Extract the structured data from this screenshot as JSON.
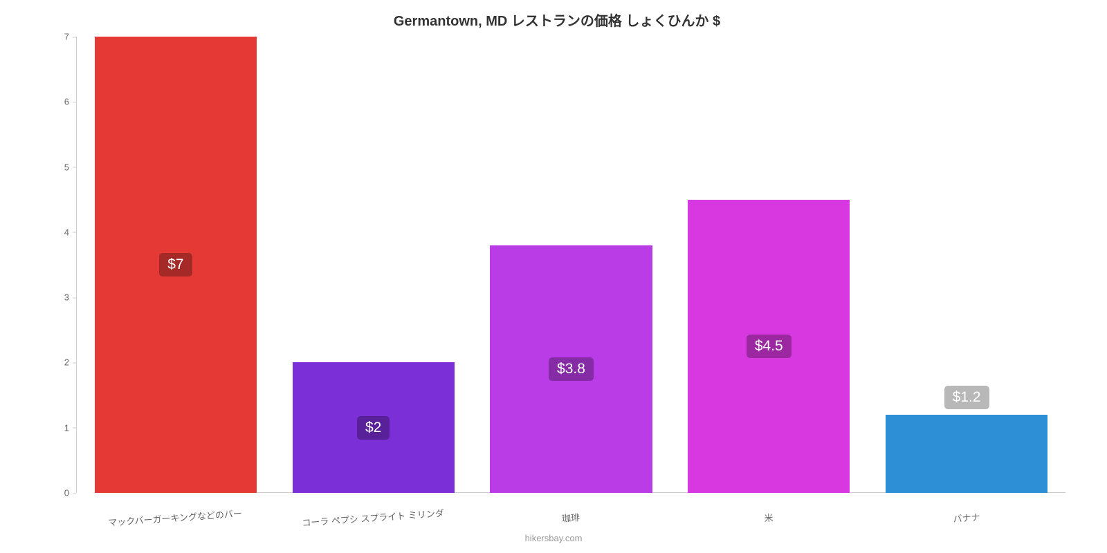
{
  "chart": {
    "type": "bar",
    "title": "Germantown, MD レストランの価格 しょくひんか $",
    "title_fontsize": 20,
    "title_color": "#333333",
    "attribution": "hikersbay.com",
    "attribution_color": "#999999",
    "background_color": "#ffffff",
    "ylim": [
      0,
      7
    ],
    "yticks": [
      0,
      1,
      2,
      3,
      4,
      5,
      6,
      7
    ],
    "ytick_color": "#666666",
    "ytick_fontsize": 13,
    "axis_line_color": "#cccccc",
    "bar_width_ratio": 0.82,
    "categories": [
      "マックバーガーキングなどのバー",
      "コーラ ペプシ スプライト ミリンダ",
      "珈琲",
      "米",
      "バナナ"
    ],
    "values": [
      7,
      2,
      3.8,
      4.5,
      1.2
    ],
    "value_labels": [
      "$7",
      "$2",
      "$3.8",
      "$4.5",
      "$1.2"
    ],
    "bar_colors": [
      "#e53935",
      "#7b2fd6",
      "#b93ce6",
      "#d838e0",
      "#2d8fd6"
    ],
    "value_label_bg": "rgba(0,0,0,0.28)",
    "value_label_color": "#ffffff",
    "value_label_fontsize": 21,
    "xlabel_fontsize": 13,
    "xlabel_color": "#666666",
    "xlabel_rotation_deg": -4,
    "label_above_threshold": 1.5
  }
}
